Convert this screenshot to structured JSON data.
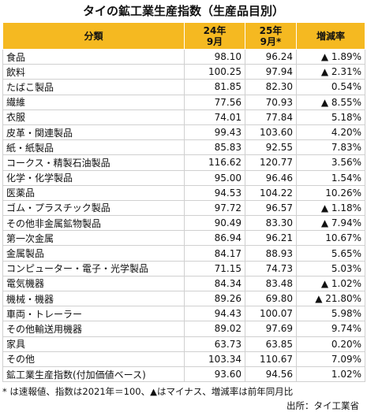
{
  "title": "タイの鉱工業生産指数（生産品目別）",
  "table": {
    "header": [
      [
        "分類"
      ],
      [
        "24年",
        "9月"
      ],
      [
        "25年",
        "9月*"
      ],
      [
        "増減率"
      ]
    ],
    "rows": [
      [
        "食品",
        "98.10",
        "96.24",
        "▲ 1.89%"
      ],
      [
        "飲料",
        "100.25",
        "97.94",
        "▲ 2.31%"
      ],
      [
        "たばこ製品",
        "81.85",
        "82.30",
        "0.54%"
      ],
      [
        "繊維",
        "77.56",
        "70.93",
        "▲ 8.55%"
      ],
      [
        "衣服",
        "74.01",
        "77.84",
        "5.18%"
      ],
      [
        "皮革・関連製品",
        "99.43",
        "103.60",
        "4.20%"
      ],
      [
        "紙・紙製品",
        "85.83",
        "92.55",
        "7.83%"
      ],
      [
        "コークス・精製石油製品",
        "116.62",
        "120.77",
        "3.56%"
      ],
      [
        "化学・化学製品",
        "95.00",
        "96.46",
        "1.54%"
      ],
      [
        "医薬品",
        "94.53",
        "104.22",
        "10.26%"
      ],
      [
        "ゴム・プラスチック製品",
        "97.72",
        "96.57",
        "▲ 1.18%"
      ],
      [
        "その他非金属鉱物製品",
        "90.49",
        "83.30",
        "▲ 7.94%"
      ],
      [
        "第一次金属",
        "86.94",
        "96.21",
        "10.67%"
      ],
      [
        "金属製品",
        "84.17",
        "88.93",
        "5.65%"
      ],
      [
        "コンピューター・電子・光学製品",
        "71.15",
        "74.73",
        "5.03%"
      ],
      [
        "電気機器",
        "84.34",
        "83.48",
        "▲ 1.02%"
      ],
      [
        "機械・機器",
        "89.26",
        "69.80",
        "▲ 21.80%"
      ],
      [
        "車両・トレーラー",
        "94.43",
        "100.07",
        "5.98%"
      ],
      [
        "その他輸送用機器",
        "89.02",
        "97.69",
        "9.74%"
      ],
      [
        "家具",
        "63.73",
        "63.85",
        "0.20%"
      ],
      [
        "その他",
        "103.34",
        "110.67",
        "7.09%"
      ],
      [
        "鉱工業生産指数(付加価値ベース)",
        "93.60",
        "94.56",
        "1.02%"
      ]
    ]
  },
  "footnote": "* は速報値、指数は2021年＝100、▲はマイナス、増減率は前年同月比",
  "source": "出所：タイ工業省"
}
